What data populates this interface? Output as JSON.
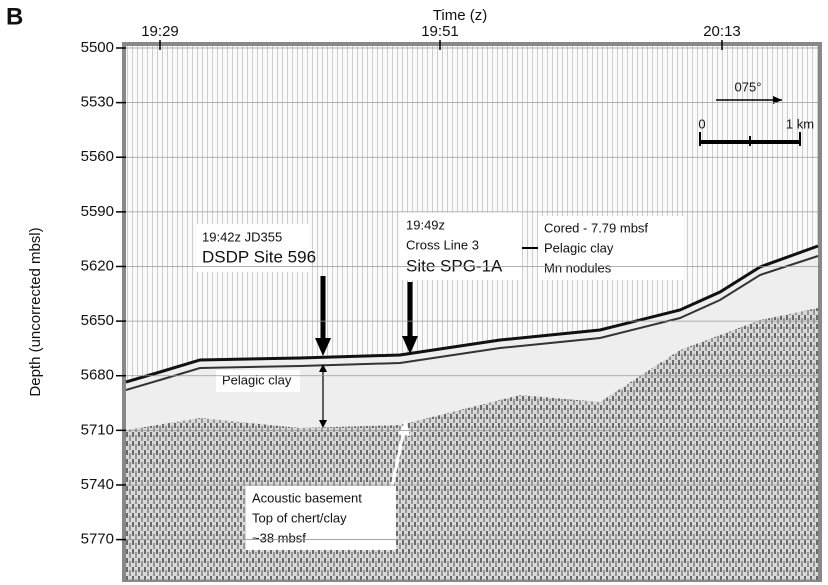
{
  "chart_data": {
    "type": "profile",
    "panel_label": "B",
    "title": "Time (z)",
    "xtick_labels": [
      "19:29",
      "19:51",
      "20:13"
    ],
    "ylabel": "Depth (uncorrected mbsl)",
    "ylim": [
      5500,
      5790
    ],
    "yticks": [
      5500,
      5530,
      5560,
      5590,
      5620,
      5650,
      5680,
      5710,
      5740,
      5770
    ],
    "inverted": true,
    "annotations": {
      "site596": [
        "19:42z JD355",
        "DSDP Site 596"
      ],
      "spg1a": [
        "19:49z",
        "Cross Line 3",
        "Site SPG-1A"
      ],
      "cored": [
        "Cored - 7.79 mbsf",
        "Pelagic clay",
        "Mn nodules"
      ],
      "clay": "Pelagic clay",
      "basement": [
        "Acoustic basement",
        "Top of chert/clay",
        "~38 mbsf"
      ]
    },
    "scale": {
      "heading": "075°",
      "start": "0",
      "end": "1 km"
    }
  }
}
